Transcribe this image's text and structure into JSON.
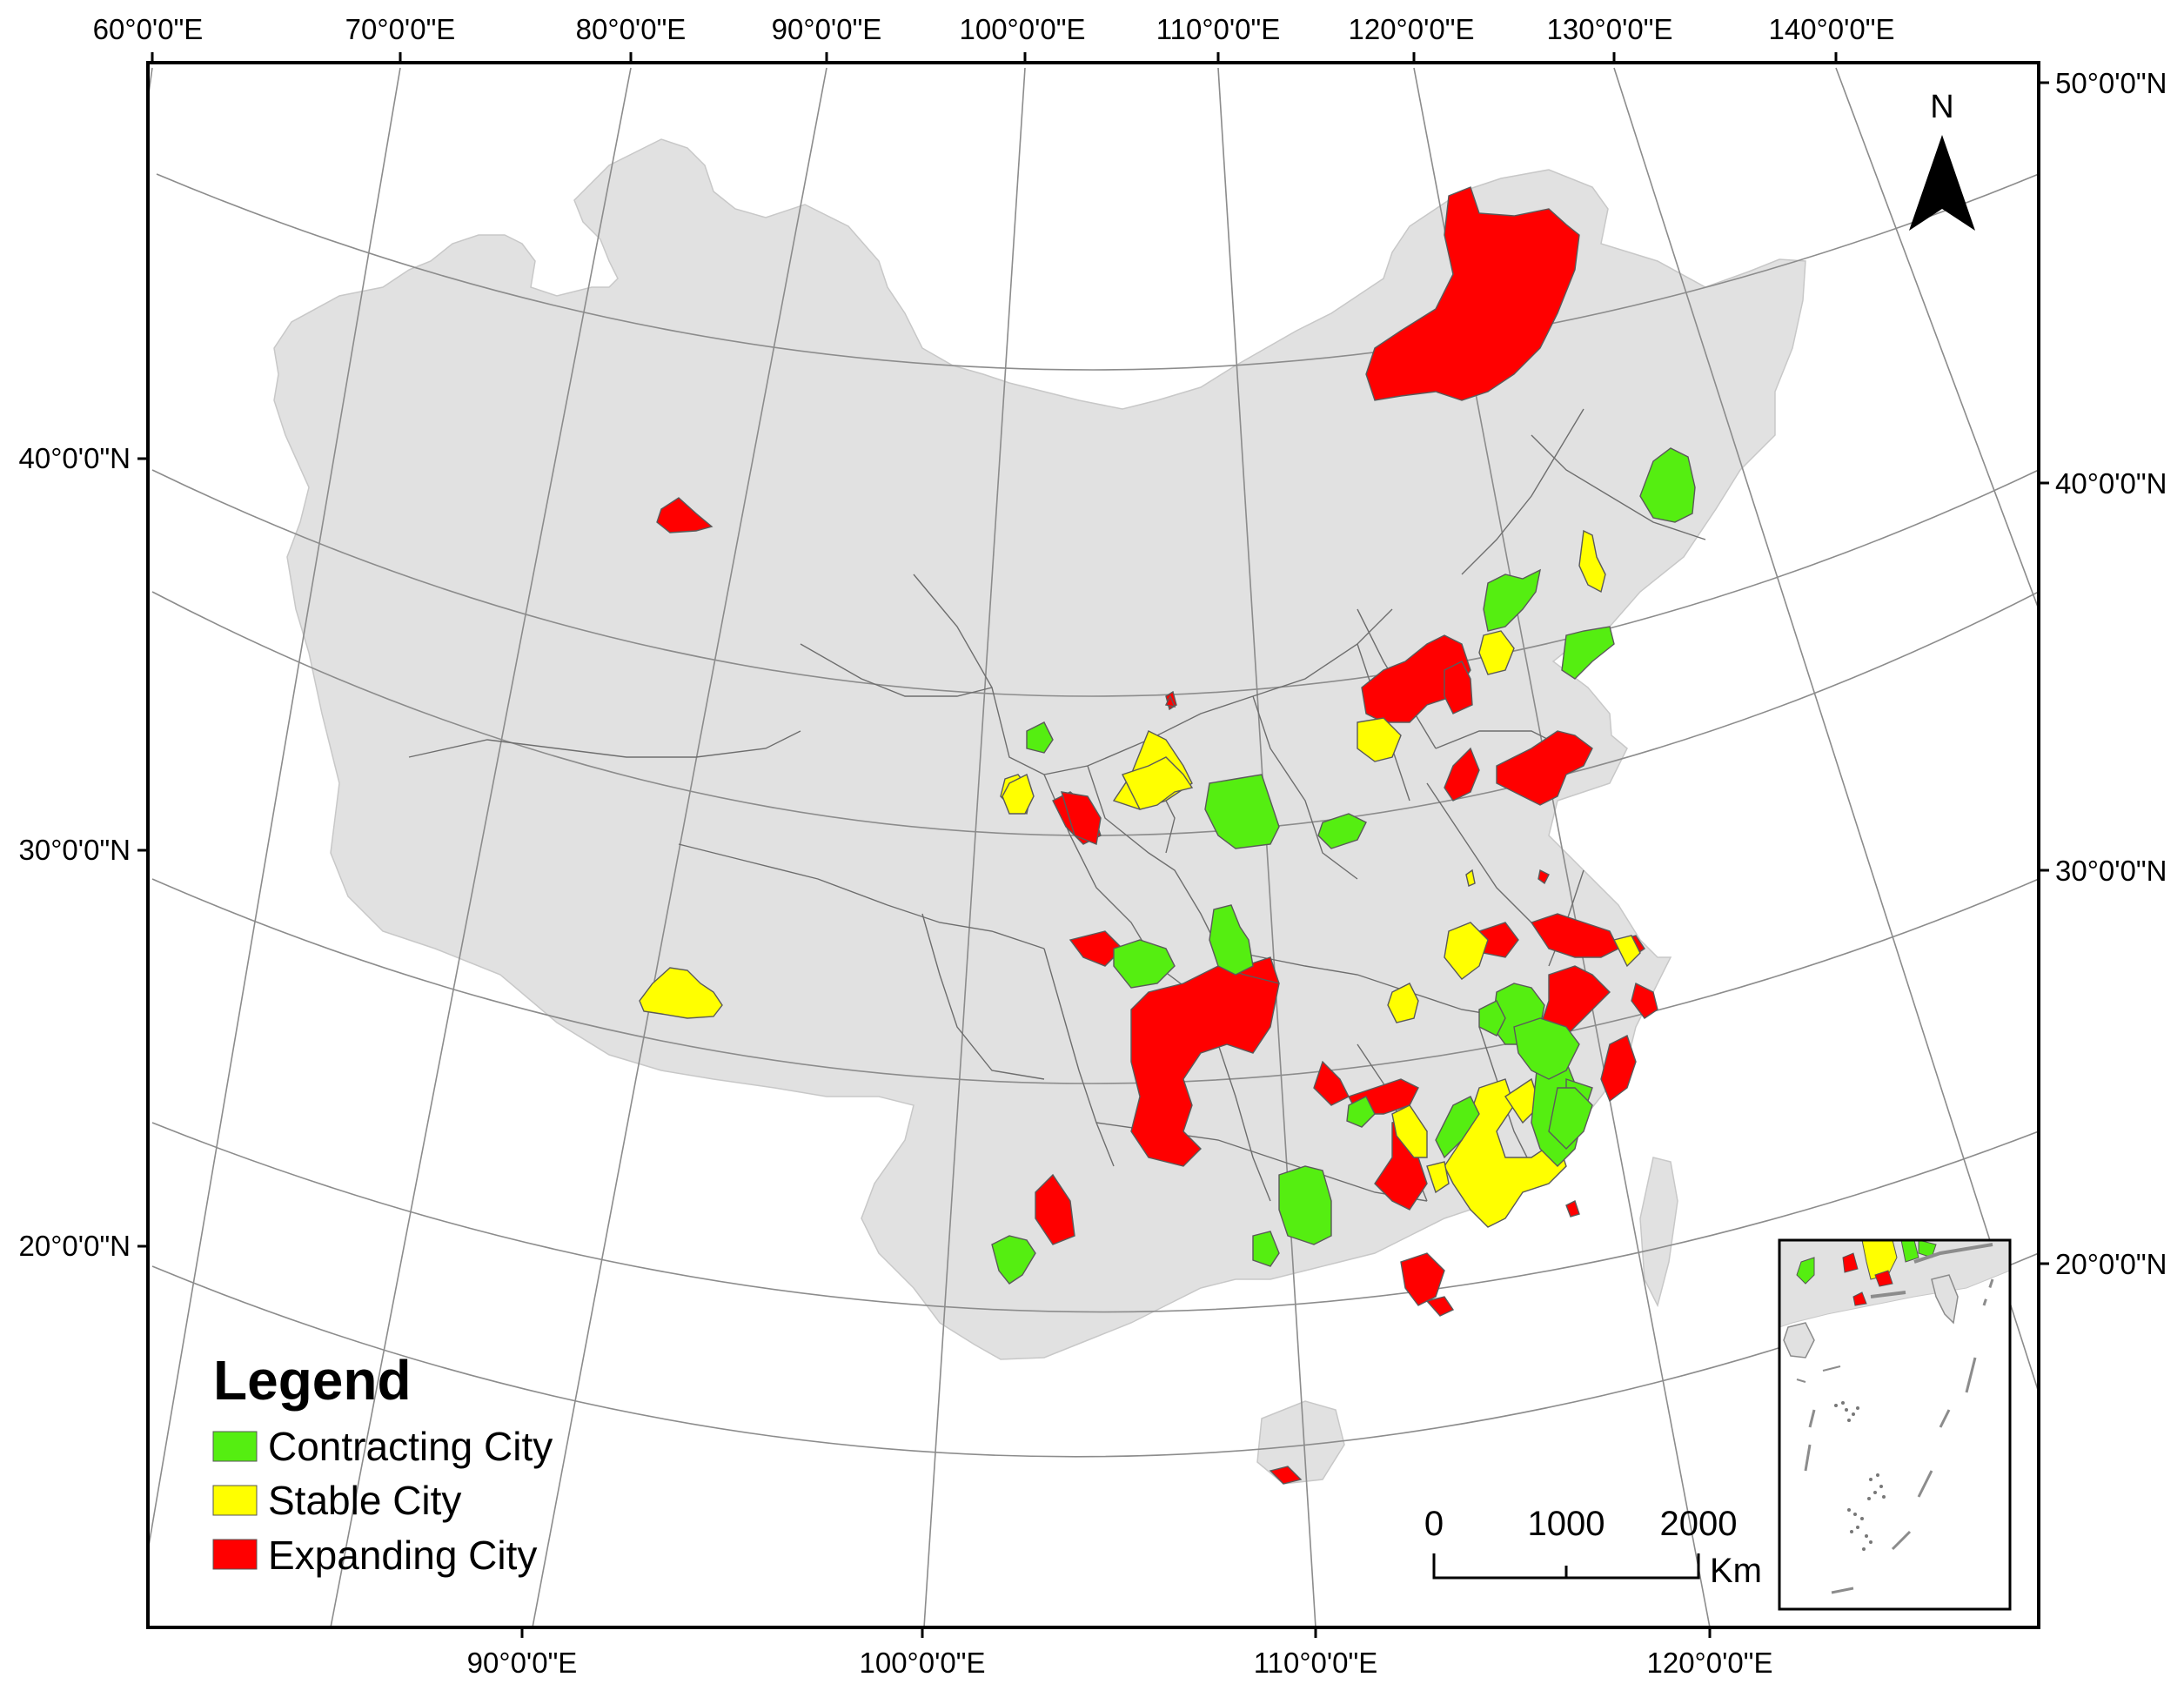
{
  "axes": {
    "top": [
      "60°0'0\"E",
      "70°0'0\"E",
      "80°0'0\"E",
      "90°0'0\"E",
      "100°0'0\"E",
      "110°0'0\"E",
      "120°0'0\"E",
      "130°0'0\"E",
      "140°0'0\"E"
    ],
    "bottom": [
      "90°0'0\"E",
      "100°0'0\"E",
      "110°0'0\"E",
      "120°0'0\"E"
    ],
    "left": [
      "40°0'0\"N",
      "30°0'0\"N",
      "20°0'0\"N"
    ],
    "right": [
      "50°0'0\"N",
      "40°0'0\"N",
      "30°0'0\"N",
      "20°0'0\"N"
    ]
  },
  "north_arrow": {
    "label": "N"
  },
  "legend": {
    "title": "Legend",
    "items": [
      {
        "label": "Contracting City",
        "color": "#55ee11"
      },
      {
        "label": "Stable City",
        "color": "#ffff00"
      },
      {
        "label": "Expanding City",
        "color": "#ff0000"
      }
    ]
  },
  "scale_bar": {
    "ticks": [
      "0",
      "1000",
      "2000"
    ],
    "unit": "Km"
  },
  "colors": {
    "land": "#e1e1e1",
    "contracting": "#55ee11",
    "stable": "#ffff00",
    "expanding": "#ff0000"
  }
}
